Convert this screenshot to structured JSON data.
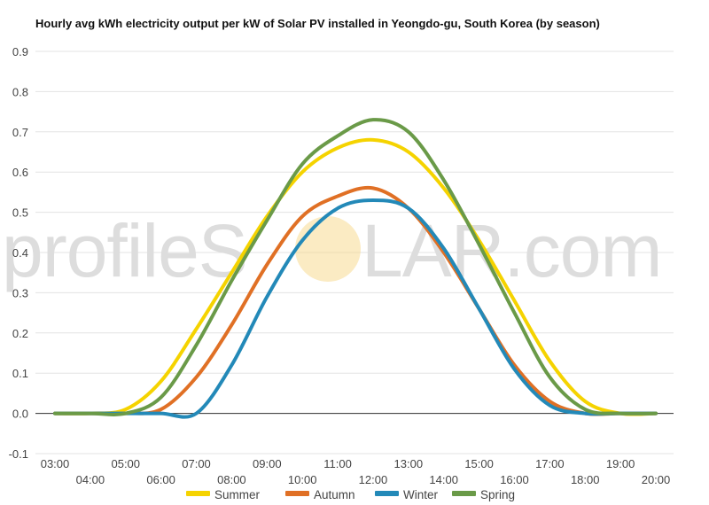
{
  "chart_data": {
    "type": "line",
    "title": "Hourly avg kWh electricity output per kW of Solar PV installed in Yeongdo-gu, South Korea (by season)",
    "xlabel": "",
    "ylabel": "",
    "x": [
      "03:00",
      "04:00",
      "05:00",
      "06:00",
      "07:00",
      "08:00",
      "09:00",
      "10:00",
      "11:00",
      "12:00",
      "13:00",
      "14:00",
      "15:00",
      "16:00",
      "17:00",
      "18:00",
      "19:00",
      "20:00"
    ],
    "yticks": [
      "-0.1",
      "0.0",
      "0.1",
      "0.2",
      "0.3",
      "0.4",
      "0.5",
      "0.6",
      "0.7",
      "0.8",
      "0.9"
    ],
    "ylim": [
      -0.1,
      0.9
    ],
    "grid": true,
    "legend": "bottom",
    "series": [
      {
        "name": "Summer",
        "color": "#f5d300",
        "values": [
          0.0,
          0.0,
          0.01,
          0.08,
          0.21,
          0.35,
          0.49,
          0.6,
          0.66,
          0.68,
          0.65,
          0.56,
          0.43,
          0.28,
          0.13,
          0.03,
          0.0,
          0.0
        ]
      },
      {
        "name": "Autumn",
        "color": "#e07025",
        "values": [
          0.0,
          0.0,
          0.0,
          0.01,
          0.09,
          0.22,
          0.37,
          0.49,
          0.54,
          0.56,
          0.51,
          0.4,
          0.26,
          0.12,
          0.03,
          0.0,
          0.0,
          0.0
        ]
      },
      {
        "name": "Winter",
        "color": "#2389b8",
        "values": [
          0.0,
          0.0,
          0.0,
          0.0,
          0.0,
          0.12,
          0.29,
          0.43,
          0.51,
          0.53,
          0.51,
          0.41,
          0.26,
          0.11,
          0.02,
          0.0,
          0.0,
          0.0
        ]
      },
      {
        "name": "Spring",
        "color": "#6a9a48",
        "values": [
          0.0,
          0.0,
          0.0,
          0.04,
          0.17,
          0.33,
          0.48,
          0.62,
          0.69,
          0.73,
          0.7,
          0.58,
          0.42,
          0.25,
          0.09,
          0.01,
          0.0,
          0.0
        ]
      }
    ]
  },
  "watermark": {
    "left": "profileS",
    "right": "LAR.com",
    "sun_color": "#f7d27a"
  }
}
